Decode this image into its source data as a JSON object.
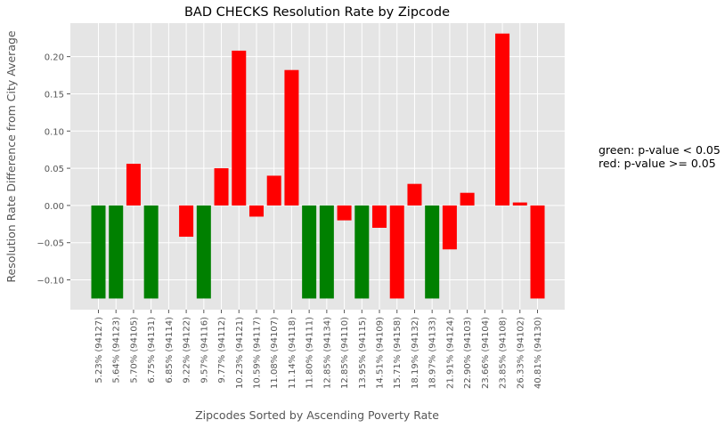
{
  "chart_data": {
    "type": "bar",
    "title": "BAD CHECKS Resolution Rate by Zipcode",
    "xlabel": "Zipcodes Sorted by Ascending Poverty Rate",
    "ylabel": "Resolution Rate Difference from City Average",
    "ylim": [
      -0.14,
      0.245
    ],
    "yticks": [
      -0.1,
      -0.05,
      0.0,
      0.05,
      0.1,
      0.15,
      0.2
    ],
    "ytick_labels": [
      "−0.10",
      "−0.05",
      "0.00",
      "0.05",
      "0.10",
      "0.15",
      "0.20"
    ],
    "grid": true,
    "colors": {
      "significant": "#008000",
      "not_significant": "#ff0000",
      "plot_bg": "#e5e5e5",
      "grid": "#ffffff"
    },
    "categories": [
      "5.23% (94127)",
      "5.64% (94123)",
      "5.70% (94105)",
      "6.75% (94131)",
      "6.85% (94114)",
      "9.22% (94122)",
      "9.57% (94116)",
      "9.77% (94112)",
      "10.23% (94121)",
      "10.59% (94117)",
      "11.08% (94107)",
      "11.14% (94118)",
      "11.80% (94111)",
      "12.85% (94134)",
      "12.85% (94110)",
      "13.95% (94115)",
      "14.51% (94109)",
      "15.71% (94158)",
      "18.19% (94132)",
      "18.97% (94133)",
      "21.91% (94124)",
      "22.90% (94103)",
      "23.66% (94104)",
      "23.85% (94108)",
      "26.33% (94102)",
      "40.81% (94130)"
    ],
    "values": [
      -0.125,
      -0.125,
      0.056,
      -0.125,
      0.0,
      -0.042,
      -0.125,
      0.05,
      0.208,
      -0.015,
      0.04,
      0.182,
      -0.125,
      -0.125,
      -0.02,
      -0.125,
      -0.03,
      -0.125,
      0.029,
      -0.125,
      -0.059,
      0.017,
      0.0,
      0.231,
      0.004,
      -0.125
    ],
    "bar_colors": [
      "green",
      "green",
      "red",
      "green",
      "red",
      "red",
      "green",
      "red",
      "red",
      "red",
      "red",
      "red",
      "green",
      "green",
      "red",
      "green",
      "red",
      "red",
      "red",
      "green",
      "red",
      "red",
      "red",
      "red",
      "red",
      "red"
    ],
    "legend": {
      "placement": "right",
      "lines": [
        "green: p-value < 0.05",
        "red: p-value >= 0.05"
      ]
    }
  }
}
